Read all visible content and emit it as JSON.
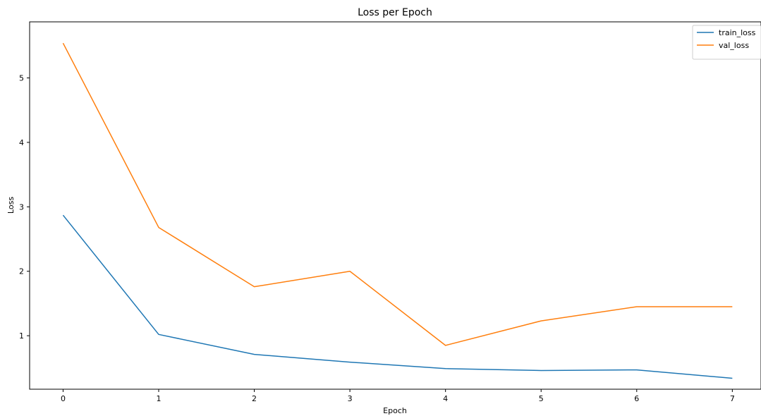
{
  "chart_data": {
    "type": "line",
    "title": "Loss per Epoch",
    "xlabel": "Epoch",
    "ylabel": "Loss",
    "x": [
      0,
      1,
      2,
      3,
      4,
      5,
      6,
      7
    ],
    "xlim": [
      -0.35,
      7.3
    ],
    "ylim": [
      0.17,
      5.87
    ],
    "xticks": [
      0,
      1,
      2,
      3,
      4,
      5,
      6,
      7
    ],
    "yticks": [
      1,
      2,
      3,
      4,
      5
    ],
    "grid": false,
    "legend_position": "top-right",
    "series": [
      {
        "name": "train_loss",
        "color": "#1f77b4",
        "values": [
          2.87,
          1.02,
          0.71,
          0.59,
          0.49,
          0.46,
          0.47,
          0.34
        ]
      },
      {
        "name": "val_loss",
        "color": "#ff7f0e",
        "values": [
          5.54,
          2.68,
          1.76,
          2.0,
          0.85,
          1.23,
          1.45,
          1.45
        ]
      }
    ]
  }
}
